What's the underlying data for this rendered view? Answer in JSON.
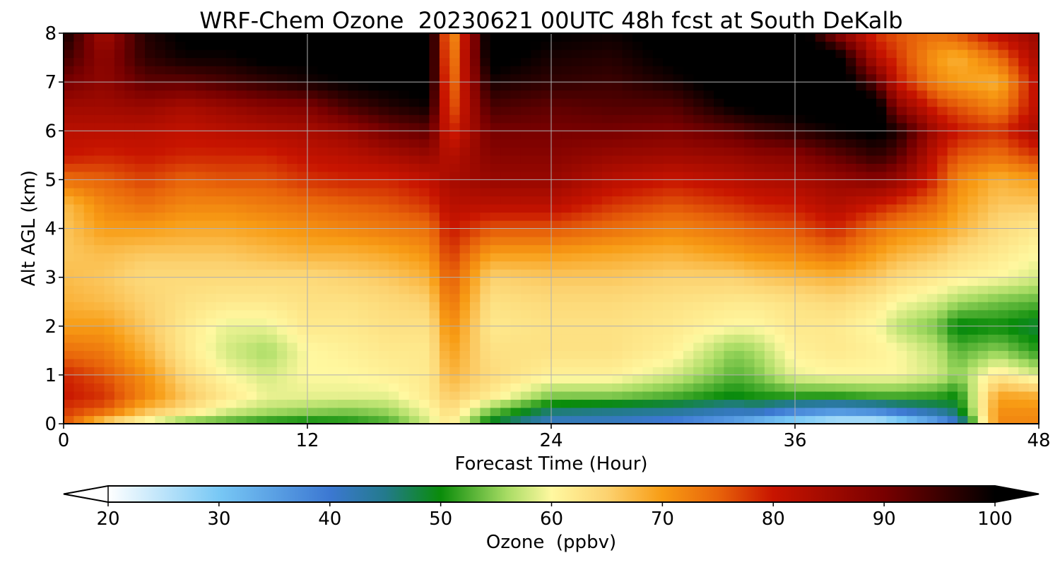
{
  "chart_data": {
    "type": "heatmap",
    "title": "WRF-Chem Ozone  20230621 00UTC 48h fcst at South DeKalb",
    "xlabel": "Forecast Time (Hour)",
    "ylabel": "Alt AGL (km)",
    "xlim": [
      0,
      48
    ],
    "ylim": [
      0,
      8
    ],
    "xticks": [
      0,
      12,
      24,
      36,
      48
    ],
    "yticks": [
      0,
      1,
      2,
      3,
      4,
      5,
      6,
      7,
      8
    ],
    "grid": true,
    "colorbar": {
      "label": "Ozone  (ppbv)",
      "min": 20,
      "max": 100,
      "ticks": [
        20,
        30,
        40,
        50,
        60,
        70,
        80,
        90,
        100
      ],
      "extend": "both",
      "stops": [
        {
          "v": 20,
          "color": "#ffffff"
        },
        {
          "v": 30,
          "color": "#78c8f5"
        },
        {
          "v": 40,
          "color": "#3c78d2"
        },
        {
          "v": 45,
          "color": "#237a8c"
        },
        {
          "v": 50,
          "color": "#0a8c0a"
        },
        {
          "v": 56,
          "color": "#a8dc64"
        },
        {
          "v": 60,
          "color": "#fff8a0"
        },
        {
          "v": 65,
          "color": "#fcd270"
        },
        {
          "v": 70,
          "color": "#f89c14"
        },
        {
          "v": 75,
          "color": "#e8640a"
        },
        {
          "v": 80,
          "color": "#c81400"
        },
        {
          "v": 90,
          "color": "#780000"
        },
        {
          "v": 100,
          "color": "#000000"
        }
      ]
    },
    "grid_hours": [
      0,
      2,
      4,
      6,
      8,
      10,
      12,
      14,
      16,
      18,
      19,
      21,
      24,
      27,
      30,
      33,
      34,
      36,
      38,
      40,
      41,
      43,
      44,
      46,
      48
    ],
    "grid_heights_km": [
      0,
      0.3,
      0.6,
      1,
      1.5,
      2,
      2.5,
      3,
      3.5,
      4,
      4.5,
      5,
      5.5,
      6,
      6.5,
      7,
      7.5,
      8
    ],
    "ozone_ppbv": [
      [
        76,
        78,
        80,
        79,
        74,
        70,
        68,
        67,
        66,
        66,
        67,
        74,
        80,
        82,
        85,
        90,
        95,
        99
      ],
      [
        64,
        76,
        78,
        76,
        73,
        70,
        67,
        66,
        67,
        70,
        72,
        75,
        79,
        82,
        85,
        87,
        87,
        84
      ],
      [
        58,
        68,
        72,
        71,
        68,
        66,
        65,
        64,
        66,
        70,
        74,
        77,
        80,
        82,
        86,
        92,
        96,
        97
      ],
      [
        53,
        64,
        66,
        64,
        62,
        62,
        63,
        64,
        66,
        69,
        72,
        75,
        79,
        81,
        84,
        92,
        99,
        101
      ],
      [
        52,
        59,
        62,
        60,
        58,
        59,
        62,
        64,
        66,
        69,
        72,
        76,
        79,
        82,
        86,
        94,
        99,
        101
      ],
      [
        50,
        57,
        59,
        58,
        56,
        59,
        62,
        64,
        67,
        70,
        73,
        76,
        79,
        83,
        88,
        96,
        101,
        102
      ],
      [
        49,
        56,
        59,
        60,
        60,
        62,
        63,
        64,
        68,
        71,
        74,
        78,
        81,
        84,
        89,
        98,
        101,
        103
      ],
      [
        50,
        55,
        59,
        60,
        61,
        62,
        63,
        65,
        68,
        72,
        75,
        79,
        82,
        86,
        94,
        100,
        102,
        103
      ],
      [
        52,
        56,
        59,
        61,
        62,
        63,
        64,
        66,
        69,
        73,
        76,
        79,
        84,
        90,
        97,
        101,
        103,
        104
      ],
      [
        58,
        60,
        62,
        62,
        62,
        63,
        65,
        68,
        71,
        74,
        78,
        81,
        86,
        92,
        99,
        102,
        103,
        104
      ],
      [
        62,
        64,
        66,
        68,
        70,
        72,
        74,
        76,
        78,
        80,
        82,
        84,
        82,
        78,
        74,
        72,
        70,
        68
      ],
      [
        48,
        55,
        62,
        64,
        63,
        62,
        63,
        65,
        70,
        76,
        82,
        86,
        88,
        90,
        94,
        98,
        102,
        103
      ],
      [
        40,
        47,
        55,
        61,
        63,
        63,
        64,
        66,
        70,
        76,
        82,
        86,
        88,
        90,
        92,
        96,
        98,
        100
      ],
      [
        40,
        46,
        55,
        61,
        63,
        63,
        64,
        66,
        69,
        74,
        78,
        82,
        86,
        90,
        93,
        95,
        97,
        99
      ],
      [
        38,
        45,
        53,
        58,
        61,
        62,
        63,
        65,
        68,
        72,
        76,
        80,
        85,
        89,
        93,
        98,
        101,
        102
      ],
      [
        33,
        43,
        50,
        53,
        55,
        60,
        62,
        65,
        70,
        74,
        78,
        82,
        86,
        92,
        100,
        103,
        104,
        104
      ],
      [
        30,
        44,
        51,
        54,
        56,
        60,
        62,
        66,
        71,
        75,
        79,
        83,
        87,
        94,
        101,
        104,
        105,
        105
      ],
      [
        26,
        40,
        52,
        59,
        61,
        62,
        63,
        67,
        72,
        76,
        80,
        84,
        88,
        96,
        102,
        104,
        105,
        105
      ],
      [
        23,
        38,
        52,
        60,
        62,
        62,
        64,
        68,
        74,
        79,
        83,
        86,
        92,
        99,
        103,
        105,
        103,
        88
      ],
      [
        22,
        40,
        53,
        60,
        61,
        60,
        62,
        66,
        70,
        74,
        80,
        88,
        96,
        101,
        103,
        92,
        82,
        78
      ],
      [
        25,
        42,
        53,
        60,
        60,
        57,
        60,
        64,
        68,
        72,
        78,
        86,
        93,
        98,
        88,
        80,
        78,
        76
      ],
      [
        33,
        45,
        52,
        58,
        57,
        54,
        58,
        62,
        66,
        70,
        74,
        78,
        80,
        84,
        78,
        72,
        70,
        74
      ],
      [
        40,
        48,
        50,
        55,
        53,
        49,
        56,
        61,
        64,
        68,
        70,
        72,
        76,
        80,
        76,
        70,
        68,
        76
      ],
      [
        72,
        71,
        69,
        62,
        55,
        50,
        54,
        60,
        62,
        64,
        66,
        68,
        74,
        78,
        72,
        68,
        74,
        82
      ],
      [
        72,
        71,
        68,
        58,
        51,
        48,
        53,
        58,
        60,
        62,
        66,
        70,
        78,
        84,
        82,
        82,
        84,
        86
      ]
    ]
  }
}
